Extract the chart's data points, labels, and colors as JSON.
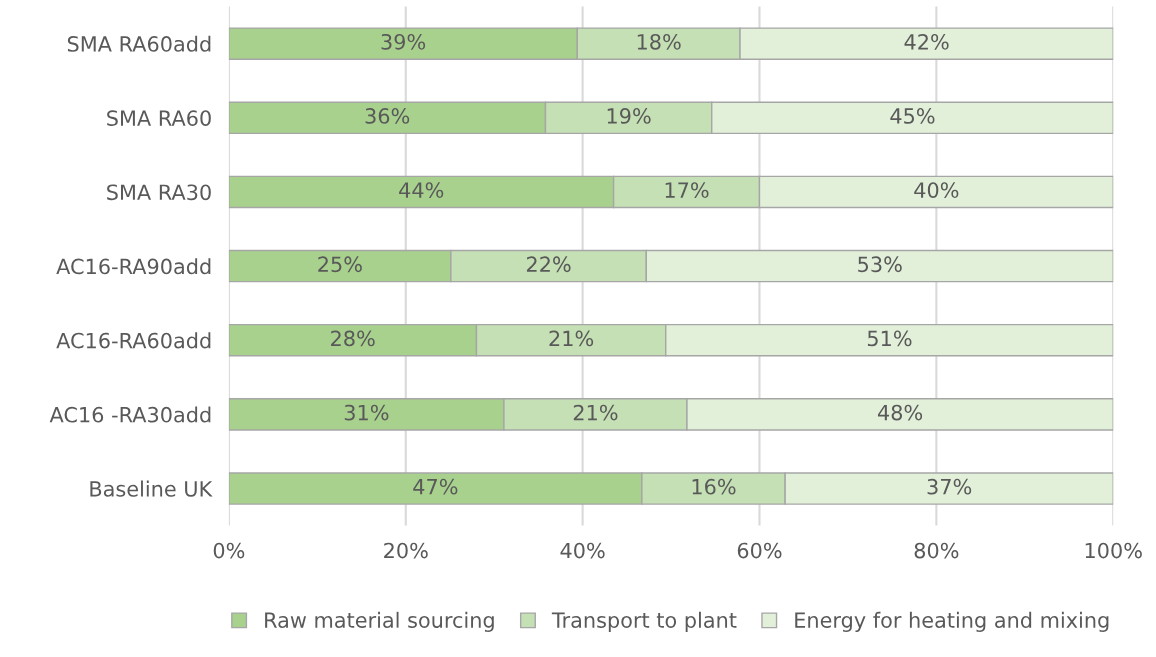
{
  "chart_data": {
    "type": "bar",
    "orientation": "horizontal",
    "stacked": true,
    "categories": [
      "SMA RA60add",
      "SMA RA60",
      "SMA RA30",
      "AC16-RA90add",
      "AC16-RA60add",
      "AC16 -RA30add",
      "Baseline UK"
    ],
    "series": [
      {
        "name": "Raw material sourcing",
        "color": "#a9d18e",
        "values": [
          39.4,
          35.8,
          43.5,
          25.1,
          28.0,
          31.1,
          46.7
        ],
        "value_labels": [
          "39%",
          "36%",
          "44%",
          "25%",
          "28%",
          "31%",
          "47%"
        ]
      },
      {
        "name": "Transport to plant",
        "color": "#c5e0b4",
        "values": [
          18.4,
          18.8,
          16.5,
          22.1,
          21.4,
          20.7,
          16.2
        ],
        "value_labels": [
          "18%",
          "19%",
          "17%",
          "22%",
          "21%",
          "21%",
          "16%"
        ]
      },
      {
        "name": "Energy for heating and mixing",
        "color": "#e2f0d9",
        "values": [
          42.2,
          45.4,
          40.0,
          52.8,
          50.6,
          48.2,
          37.1
        ],
        "value_labels": [
          "42%",
          "45%",
          "40%",
          "53%",
          "51%",
          "48%",
          "37%"
        ]
      }
    ],
    "xlim": [
      0,
      100
    ],
    "xticks": [
      {
        "value": 0,
        "label": "0%"
      },
      {
        "value": 20,
        "label": "20%"
      },
      {
        "value": 40,
        "label": "40%"
      },
      {
        "value": 60,
        "label": "60%"
      },
      {
        "value": 80,
        "label": "80%"
      },
      {
        "value": 100,
        "label": "100%"
      }
    ],
    "grid": "x",
    "legend": "bottom"
  }
}
